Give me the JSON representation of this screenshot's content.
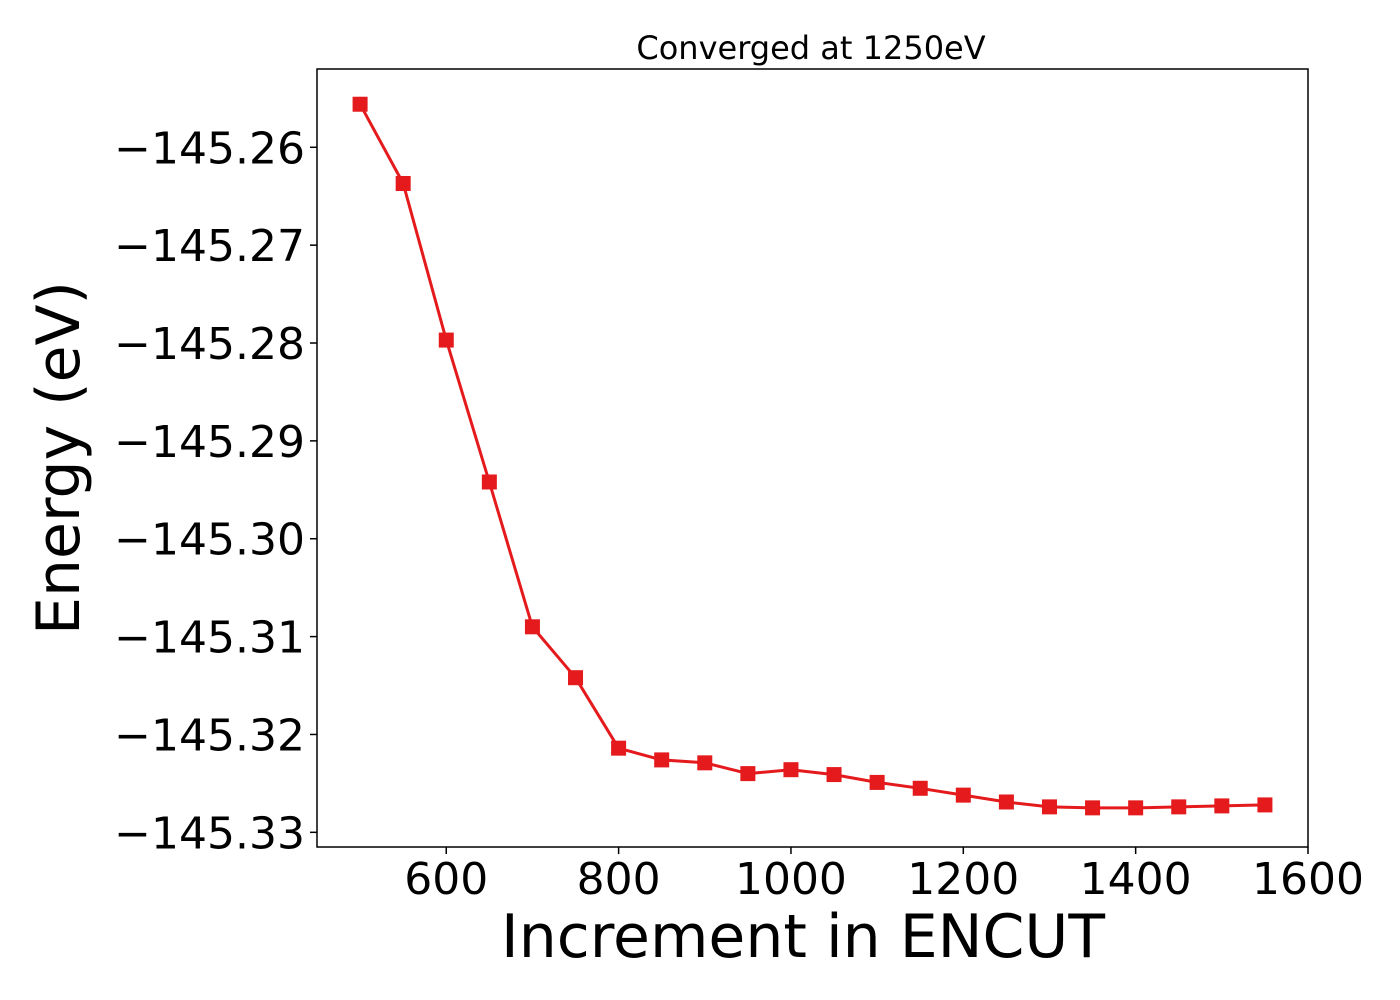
{
  "chart_data": {
    "type": "line",
    "title": "Converged at 1250eV",
    "xlabel": "Increment in ENCUT",
    "ylabel": "Energy (eV)",
    "xlim": [
      450,
      1600
    ],
    "ylim": [
      -145.3315,
      -145.252
    ],
    "xticks": [
      600,
      800,
      1000,
      1200,
      1400,
      1600
    ],
    "xtick_labels": [
      "600",
      "800",
      "1000",
      "1200",
      "1400",
      "1600"
    ],
    "yticks": [
      -145.26,
      -145.27,
      -145.28,
      -145.29,
      -145.3,
      -145.31,
      -145.32,
      -145.33
    ],
    "ytick_labels": [
      "−145.26",
      "−145.27",
      "−145.28",
      "−145.29",
      "−145.30",
      "−145.31",
      "−145.32",
      "−145.33"
    ],
    "grid": false,
    "series": [
      {
        "color": "#e41a1c",
        "marker": "square",
        "x": [
          500,
          550,
          600,
          650,
          700,
          750,
          800,
          850,
          900,
          950,
          1000,
          1050,
          1100,
          1150,
          1200,
          1250,
          1300,
          1350,
          1400,
          1450,
          1500,
          1550
        ],
        "y": [
          -145.2556,
          -145.2637,
          -145.2797,
          -145.2942,
          -145.309,
          -145.3142,
          -145.3214,
          -145.3226,
          -145.3229,
          -145.324,
          -145.3236,
          -145.3241,
          -145.3249,
          -145.3255,
          -145.3262,
          -145.3269,
          -145.3274,
          -145.3275,
          -145.3275,
          -145.3274,
          -145.3273,
          -145.3272
        ]
      }
    ]
  }
}
